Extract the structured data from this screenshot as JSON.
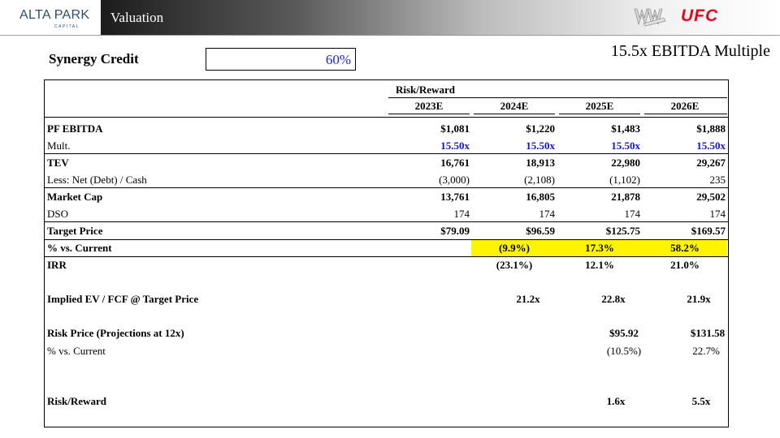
{
  "header": {
    "logo_main": "ALTA PARK",
    "logo_sub": "CAPITAL",
    "title": "Valuation",
    "ufc_logo": "UFC",
    "brand_gradient_start": "#000000",
    "ufc_color": "#e3061a"
  },
  "multiple_label": "15.5x EBITDA Multiple",
  "synergy": {
    "label": "Synergy Credit",
    "value": "60%"
  },
  "table": {
    "title": "Risk/Reward",
    "columns": [
      "2023E",
      "2024E",
      "2025E",
      "2026E"
    ],
    "rows": {
      "pf_ebitda": {
        "label": "PF EBITDA",
        "values": [
          "$1,081",
          "$1,220",
          "$1,483",
          "$1,888"
        ]
      },
      "mult": {
        "label": "Mult.",
        "values": [
          "15.50x",
          "15.50x",
          "15.50x",
          "15.50x"
        ]
      },
      "tev": {
        "label": "TEV",
        "values": [
          "16,761",
          "18,913",
          "22,980",
          "29,267"
        ]
      },
      "net_debt": {
        "label": "Less: Net (Debt) / Cash",
        "values": [
          "(3,000)",
          "(2,108)",
          "(1,102)",
          "235"
        ]
      },
      "market_cap": {
        "label": "Market Cap",
        "values": [
          "13,761",
          "16,805",
          "21,878",
          "29,502"
        ]
      },
      "dso": {
        "label": "DSO",
        "values": [
          "174",
          "174",
          "174",
          "174"
        ]
      },
      "target_price": {
        "label": "Target Price",
        "values": [
          "$79.09",
          "$96.59",
          "$125.75",
          "$169.57"
        ]
      },
      "pct_vs_current": {
        "label": "% vs. Current",
        "values": [
          "",
          "(9.9%)",
          "17.3%",
          "58.2%"
        ]
      },
      "irr": {
        "label": "IRR",
        "values": [
          "",
          "(23.1%)",
          "12.1%",
          "21.0%"
        ]
      },
      "implied_ev_fcf": {
        "label": "Implied EV / FCF @ Target Price",
        "values": [
          "",
          "21.2x",
          "22.8x",
          "21.9x"
        ]
      },
      "risk_price": {
        "label": "Risk Price (Projections at 12x)",
        "values": [
          "",
          "",
          "$95.92",
          "$131.58"
        ]
      },
      "risk_pct": {
        "label": "% vs. Current",
        "values": [
          "",
          "",
          "(10.5%)",
          "22.7%"
        ]
      },
      "risk_reward": {
        "label": "Risk/Reward",
        "values": [
          "",
          "",
          "1.6x",
          "5.5x"
        ]
      }
    },
    "highlight_color": "#fff400",
    "input_color": "#1414d6"
  }
}
